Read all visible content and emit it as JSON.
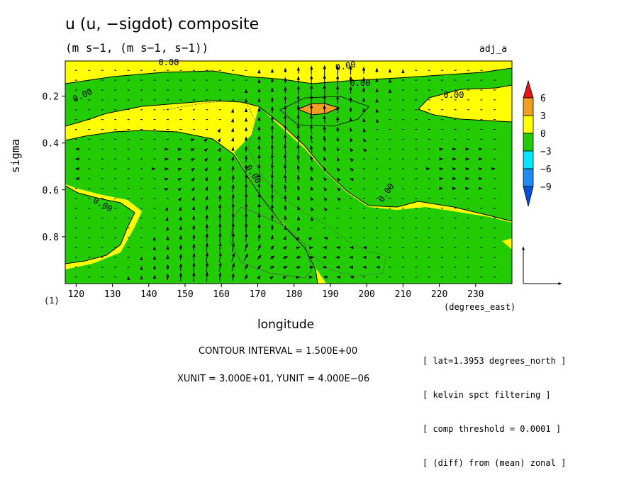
{
  "header": {
    "title": "u (u, −sigdot) composite",
    "subtitle": "(m s−1, (m s−1, s−1))",
    "tag": "adj_a"
  },
  "chart_data": {
    "type": "heatmap",
    "xlabel": "longitude",
    "xlabel_units": "(degrees_east)",
    "ylabel": "sigma",
    "index_label": "(1)",
    "x_ticks": [
      "120",
      "130",
      "140",
      "150",
      "160",
      "170",
      "180",
      "190",
      "200",
      "210",
      "220",
      "230"
    ],
    "y_ticks": [
      "0.2",
      "0.4",
      "0.6",
      "0.8"
    ],
    "xlim": [
      117,
      240
    ],
    "ylim": [
      0.05,
      1.0
    ],
    "y_inverted": true,
    "colorbar": {
      "levels": [
        "6",
        "3",
        "0",
        "−3",
        "−6",
        "−9"
      ],
      "colors": [
        "#e8141c",
        "#f0a020",
        "#ffff00",
        "#22cc00",
        "#00e8ff",
        "#1e8cf0",
        "#0050e0"
      ]
    },
    "contour_labels": [
      "0.00",
      "0.00",
      "0.00",
      "0.00",
      "0.00",
      "0.00",
      "0.00",
      "0.00"
    ],
    "contour_interval_text": "CONTOUR INTERVAL = 1.500E+00",
    "unit_vector_text": "XUNIT = 3.000E+01, YUNIT = 4.000E−06",
    "annotations": [
      "[ lat=1.3953 degrees_north ]",
      "[ kelvin spct filtering ]",
      "[ comp threshold = 0.0001 ]",
      "[ (diff) from (mean) zonal ]"
    ],
    "fill_colors": {
      "positive": "#ffff00",
      "negative": "#22cc00",
      "strong_positive": "#f0a020"
    }
  }
}
